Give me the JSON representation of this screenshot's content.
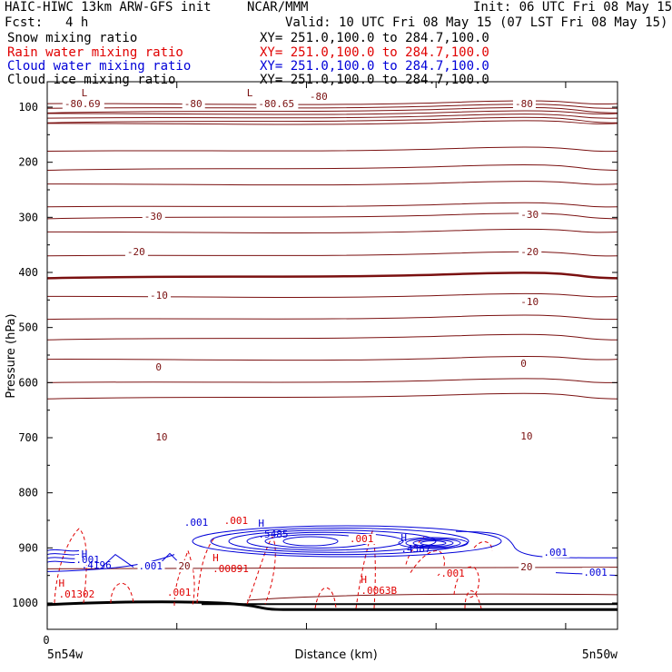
{
  "header": {
    "model": "HAIC-HIWC 13km ARW-GFS init",
    "org": "NCAR/MMM",
    "init": "Init: 06 UTC Fri 08 May 15",
    "fcst_label": "Fcst:",
    "fcst_value": "4 h",
    "valid": "Valid: 10 UTC Fri 08 May 15 (07 LST Fri 08 May 15)"
  },
  "legend": [
    {
      "label": "Snow mixing ratio",
      "xy": "XY= 251.0,100.0 to 284.7,100.0",
      "color": "#000000"
    },
    {
      "label": "Rain water mixing ratio",
      "xy": "XY= 251.0,100.0 to 284.7,100.0",
      "color": "#e00000"
    },
    {
      "label": "Cloud water mixing ratio",
      "xy": "XY= 251.0,100.0 to 284.7,100.0",
      "color": "#0000d8"
    },
    {
      "label": "Cloud ice mixing ratio",
      "xy": "XY= 251.0,100.0 to 284.7,100.0",
      "color": "#000000"
    }
  ],
  "colors": {
    "temperature": "#7a1010",
    "rain": "#e00000",
    "cloud_water": "#0000d8",
    "terrain": "#000000"
  },
  "chart_data": {
    "type": "contour cross-section",
    "ylabel": "Pressure (hPa)",
    "xlabel": "Distance (km)",
    "x_left_label": "5n54w",
    "x_right_label": "5n50w",
    "x_origin_label": "0",
    "y_ticks": [
      "100",
      "200",
      "300",
      "400",
      "500",
      "600",
      "700",
      "800",
      "900",
      "1000"
    ],
    "ylim": [
      50,
      1050
    ],
    "temperature_contours": [
      {
        "label": "-80.69",
        "x": 0.03,
        "y": 118
      },
      {
        "label": "-80",
        "x": 0.24,
        "y": 118
      },
      {
        "label": "-80.65",
        "x": 0.37,
        "y": 118
      },
      {
        "label": "-80",
        "x": 0.46,
        "y": 110
      },
      {
        "label": "-80",
        "x": 0.82,
        "y": 118
      },
      {
        "label": "-30",
        "x": 0.17,
        "y": 242
      },
      {
        "label": "-30",
        "x": 0.83,
        "y": 240
      },
      {
        "label": "-20",
        "x": 0.14,
        "y": 281
      },
      {
        "label": "-20",
        "x": 0.83,
        "y": 281
      },
      {
        "label": "-10",
        "x": 0.18,
        "y": 329
      },
      {
        "label": "-10",
        "x": 0.83,
        "y": 336
      },
      {
        "label": "0",
        "x": 0.19,
        "y": 408
      },
      {
        "label": "0",
        "x": 0.83,
        "y": 404
      },
      {
        "label": "10",
        "x": 0.19,
        "y": 485
      },
      {
        "label": "10",
        "x": 0.83,
        "y": 484
      },
      {
        "label": "20",
        "x": 0.23,
        "y": 627
      },
      {
        "label": "20",
        "x": 0.83,
        "y": 628
      }
    ],
    "extrema": [
      {
        "type": "L",
        "value": "",
        "x": 0.06,
        "y": 106,
        "series": "temperature"
      },
      {
        "type": "L",
        "value": "",
        "x": 0.35,
        "y": 106,
        "series": "temperature"
      },
      {
        "type": "H",
        "value": ".01302",
        "x": 0.02,
        "y": 646,
        "series": "rain"
      },
      {
        "type": "H",
        "value": ".00891",
        "x": 0.29,
        "y": 618,
        "series": "rain"
      },
      {
        "type": "H",
        "value": ".0063B",
        "x": 0.55,
        "y": 642,
        "series": "rain"
      },
      {
        "type": "H",
        "value": ".4196",
        "x": 0.06,
        "y": 614,
        "series": "cloud_water"
      },
      {
        "type": "H",
        "value": ".5485",
        "x": 0.37,
        "y": 580,
        "series": "cloud_water"
      },
      {
        "type": "H",
        "value": ".4387",
        "x": 0.62,
        "y": 596,
        "series": "cloud_water"
      }
    ],
    "contour_labels": [
      {
        "label": ".001",
        "x": 0.24,
        "y": 579,
        "series": "cloud_water"
      },
      {
        "label": ".001",
        "x": 0.16,
        "y": 627,
        "series": "cloud_water"
      },
      {
        "label": ".001",
        "x": 0.87,
        "y": 612,
        "series": "cloud_water"
      },
      {
        "label": ".001",
        "x": 0.94,
        "y": 634,
        "series": "cloud_water"
      },
      {
        "label": ".001",
        "x": 0.05,
        "y": 620,
        "series": "cloud_water"
      },
      {
        "label": ".001",
        "x": 0.53,
        "y": 597,
        "series": "rain"
      },
      {
        "label": ".001",
        "x": 0.21,
        "y": 656,
        "series": "rain"
      },
      {
        "label": ".001",
        "x": 0.69,
        "y": 635,
        "series": "rain"
      },
      {
        "label": ".001",
        "x": 0.31,
        "y": 577,
        "series": "rain"
      }
    ]
  }
}
